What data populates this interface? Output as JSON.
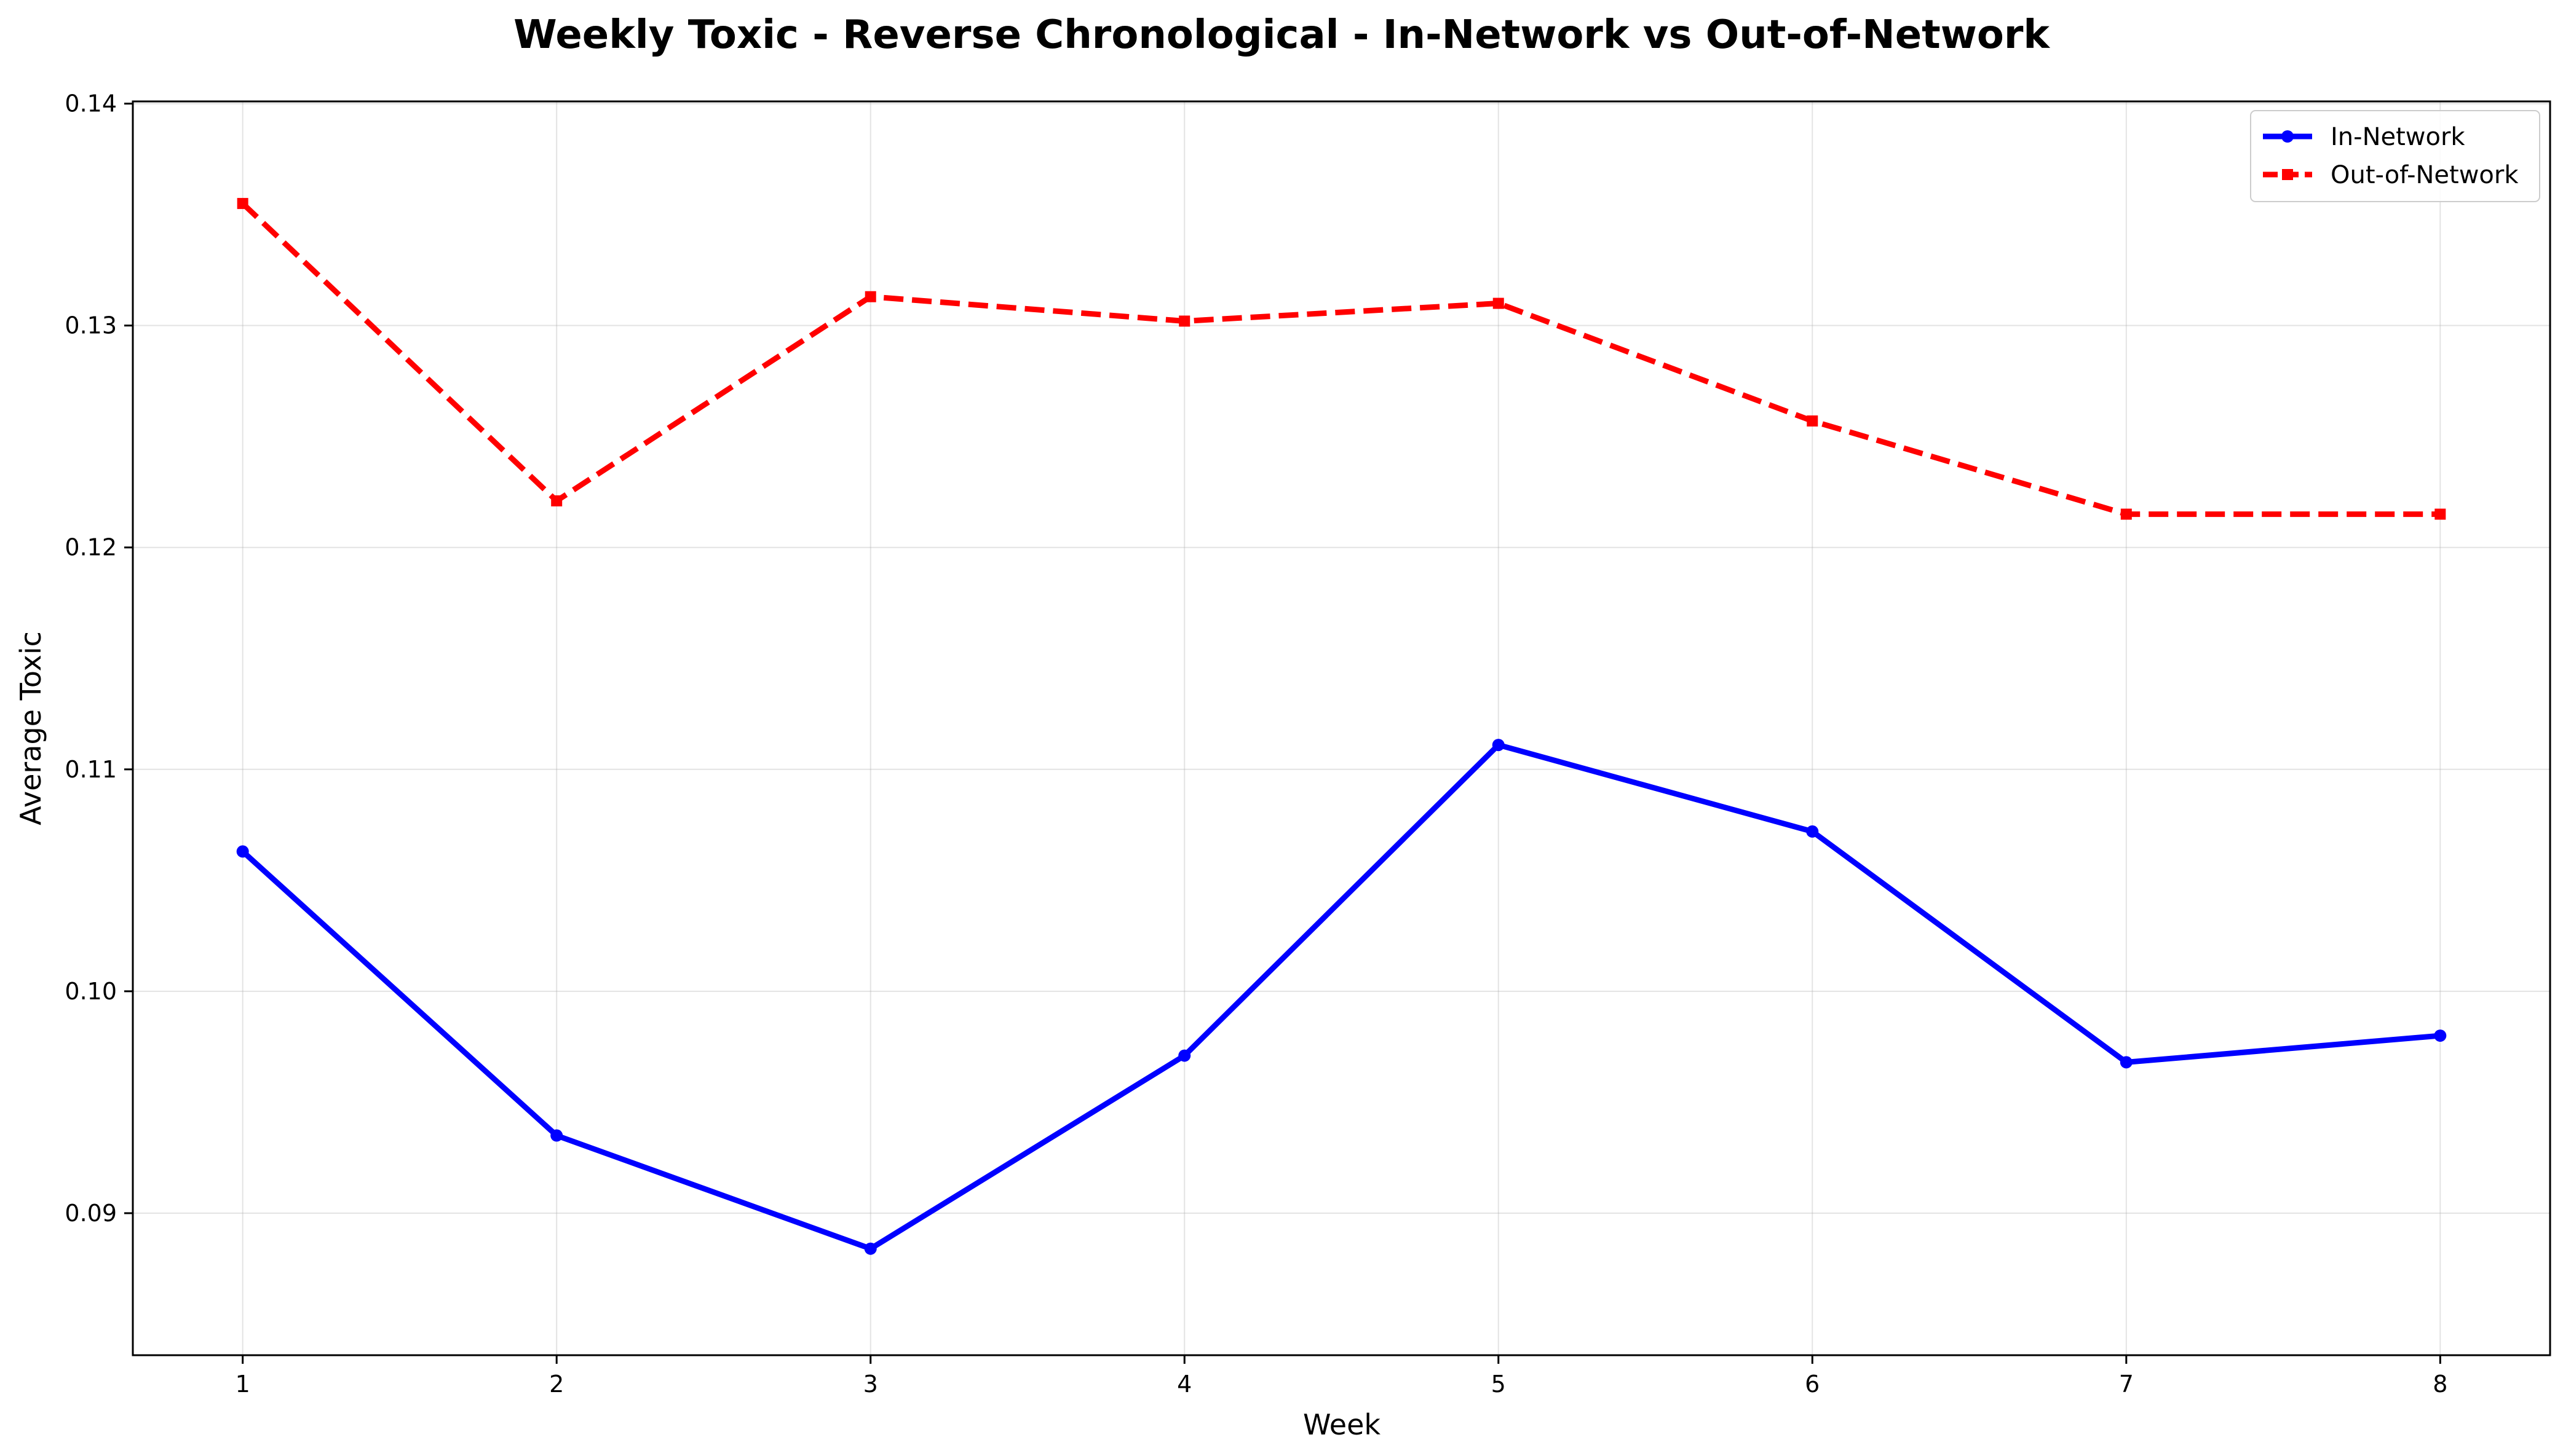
{
  "chart_data": {
    "type": "line",
    "title": "Weekly Toxic - Reverse Chronological - In-Network vs Out-of-Network",
    "xlabel": "Week",
    "ylabel": "Average Toxic",
    "x": [
      1,
      2,
      3,
      4,
      5,
      6,
      7,
      8
    ],
    "xlim": [
      0.65,
      8.35
    ],
    "ylim": [
      0.0836,
      0.1401
    ],
    "xticks": [
      "1",
      "2",
      "3",
      "4",
      "5",
      "6",
      "7",
      "8"
    ],
    "yticks": [
      "0.09",
      "0.10",
      "0.11",
      "0.12",
      "0.13",
      "0.14"
    ],
    "ytick_values": [
      0.09,
      0.1,
      0.11,
      0.12,
      0.13,
      0.14
    ],
    "grid": true,
    "legend_position": "top-right",
    "series": [
      {
        "name": "In-Network",
        "values": [
          0.1063,
          0.0935,
          0.0884,
          0.0971,
          0.1111,
          0.1072,
          0.0968,
          0.098
        ],
        "color": "#0000ff",
        "line_style": "solid",
        "marker": "circle"
      },
      {
        "name": "Out-of-Network",
        "values": [
          0.1355,
          0.1221,
          0.1313,
          0.1302,
          0.131,
          0.1257,
          0.1215,
          0.1215
        ],
        "color": "#ff0000",
        "line_style": "dashed",
        "marker": "square"
      }
    ]
  }
}
